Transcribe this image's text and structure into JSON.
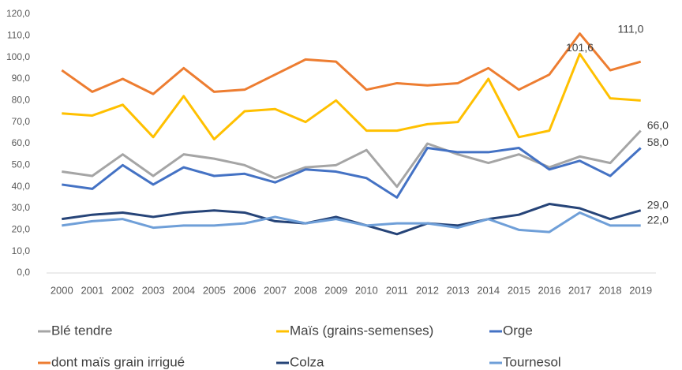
{
  "chart_data": {
    "type": "line",
    "categories": [
      "2000",
      "2001",
      "2002",
      "2003",
      "2004",
      "2005",
      "2006",
      "2007",
      "2008",
      "2009",
      "2010",
      "2011",
      "2012",
      "2013",
      "2014",
      "2015",
      "2016",
      "2017",
      "2018",
      "2019"
    ],
    "ylim": [
      0,
      120
    ],
    "yticks": [
      {
        "value": 0,
        "label": "0,0"
      },
      {
        "value": 10,
        "label": "10,0"
      },
      {
        "value": 20,
        "label": "20,0"
      },
      {
        "value": 30,
        "label": "30,0"
      },
      {
        "value": 40,
        "label": "40,0"
      },
      {
        "value": 50,
        "label": "50,0"
      },
      {
        "value": 60,
        "label": "60,0"
      },
      {
        "value": 70,
        "label": "70,0"
      },
      {
        "value": 80,
        "label": "80,0"
      },
      {
        "value": 90,
        "label": "90,0"
      },
      {
        "value": 100,
        "label": "100,0"
      },
      {
        "value": 110,
        "label": "110,0"
      },
      {
        "value": 120,
        "label": "120,0"
      }
    ],
    "grid": false,
    "legend": "bottom",
    "series": [
      {
        "name": "Blé tendre",
        "color": "#a5a5a5",
        "values": [
          47,
          45,
          55,
          45,
          55,
          53,
          50,
          44,
          49,
          50,
          57,
          40,
          60,
          55,
          51,
          55,
          49,
          54,
          51,
          66
        ],
        "value_labels": [
          null,
          null,
          null,
          null,
          null,
          null,
          null,
          null,
          null,
          null,
          null,
          null,
          null,
          null,
          null,
          null,
          null,
          null,
          null,
          "66,0"
        ]
      },
      {
        "name": "Maïs (grains-semenses)",
        "color": "#ffc000",
        "values": [
          74,
          73,
          78,
          63,
          82,
          62,
          75,
          76,
          70,
          80,
          66,
          66,
          69,
          70,
          90,
          63,
          66,
          101.6,
          81,
          80
        ],
        "value_labels": [
          null,
          null,
          null,
          null,
          null,
          null,
          null,
          null,
          null,
          null,
          null,
          null,
          null,
          null,
          null,
          null,
          null,
          "101,6",
          null,
          null
        ]
      },
      {
        "name": "Orge",
        "color": "#4472c4",
        "values": [
          41,
          39,
          50,
          41,
          49,
          45,
          46,
          42,
          48,
          47,
          44,
          35,
          58,
          56,
          56,
          58,
          48,
          52,
          45,
          58
        ],
        "value_labels": [
          null,
          null,
          null,
          null,
          null,
          null,
          null,
          null,
          null,
          null,
          null,
          null,
          null,
          null,
          null,
          null,
          null,
          null,
          null,
          "58,0"
        ]
      },
      {
        "name": "dont maïs grain irrigué",
        "color": "#ed7d31",
        "values": [
          94,
          84,
          90,
          83,
          95,
          84,
          85,
          92,
          99,
          98,
          85,
          88,
          87,
          88,
          95,
          85,
          92,
          111,
          94,
          98
        ],
        "value_labels": [
          null,
          null,
          null,
          null,
          null,
          null,
          null,
          null,
          null,
          null,
          null,
          null,
          null,
          null,
          null,
          null,
          null,
          "111,0",
          null,
          null
        ]
      },
      {
        "name": "Colza",
        "color": "#264478",
        "values": [
          25,
          27,
          28,
          26,
          28,
          29,
          28,
          24,
          23,
          26,
          22,
          18,
          23,
          22,
          25,
          27,
          32,
          30,
          25,
          29
        ],
        "value_labels": [
          null,
          null,
          null,
          null,
          null,
          null,
          null,
          null,
          null,
          null,
          null,
          null,
          null,
          null,
          null,
          null,
          null,
          null,
          null,
          "29,0"
        ]
      },
      {
        "name": "Tournesol",
        "color": "#6f9fd8",
        "values": [
          22,
          24,
          25,
          21,
          22,
          22,
          23,
          26,
          23,
          25,
          22,
          23,
          23,
          21,
          25,
          20,
          19,
          28,
          22,
          22
        ],
        "value_labels": [
          null,
          null,
          null,
          null,
          null,
          null,
          null,
          null,
          null,
          null,
          null,
          null,
          null,
          null,
          null,
          null,
          null,
          null,
          null,
          "22,0"
        ]
      }
    ]
  }
}
